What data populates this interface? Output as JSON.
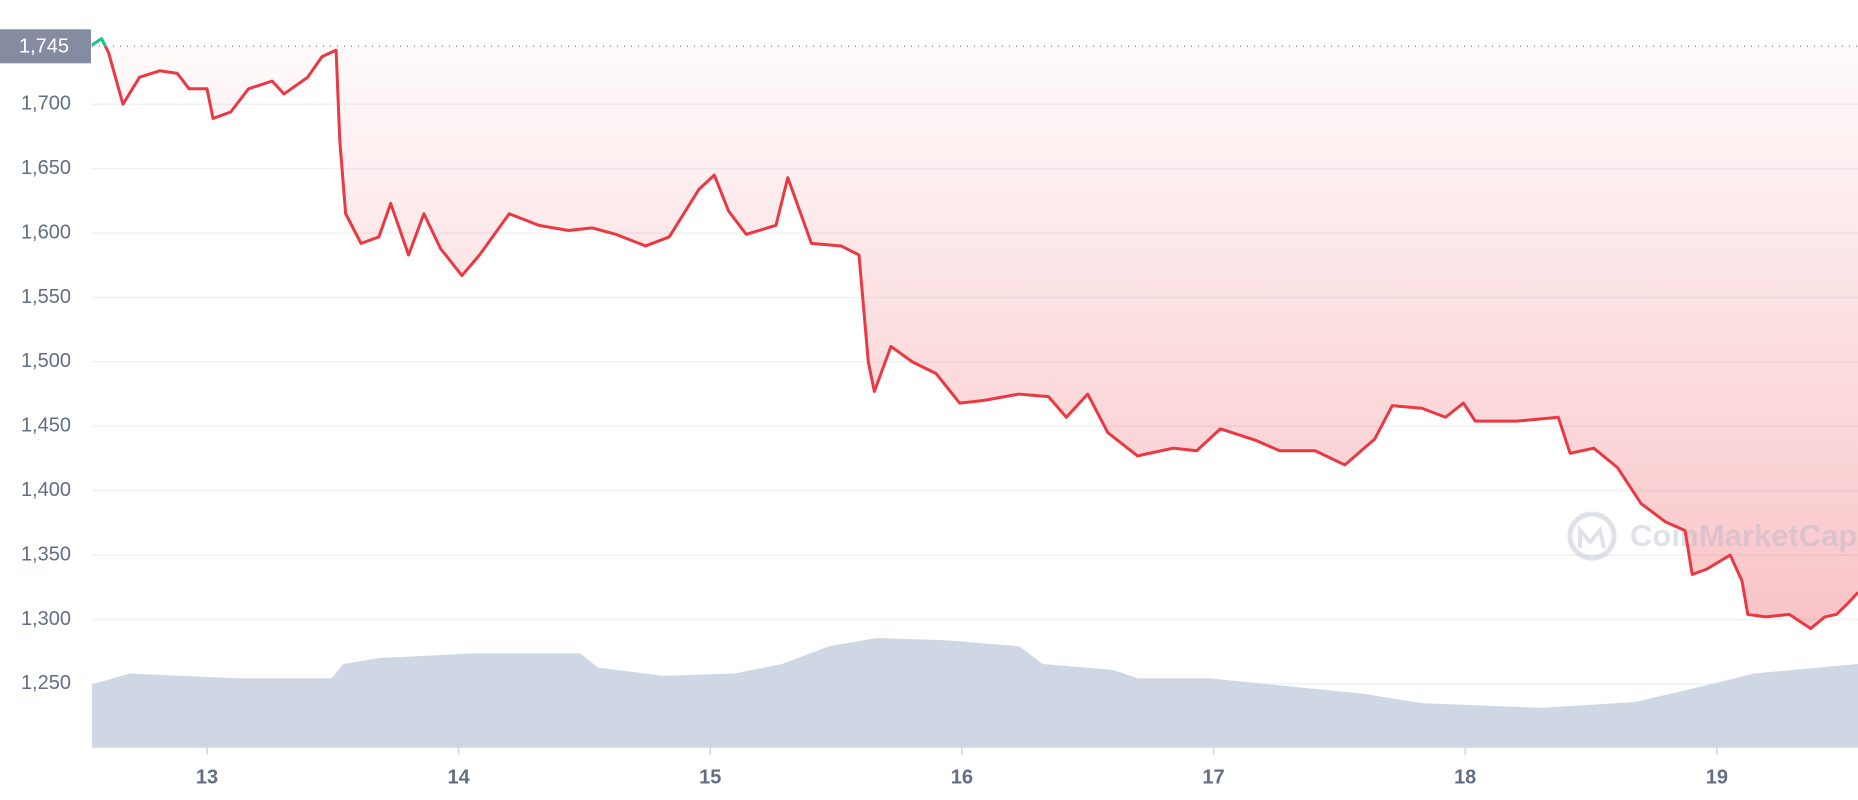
{
  "chart_data": {
    "type": "line",
    "x": [
      12.543,
      12.581,
      12.609,
      12.666,
      12.732,
      12.812,
      12.882,
      12.929,
      13.0,
      13.024,
      13.094,
      13.165,
      13.259,
      13.306,
      13.4,
      13.457,
      13.513,
      13.528,
      13.551,
      13.612,
      13.683,
      13.73,
      13.801,
      13.862,
      13.928,
      14.013,
      14.083,
      14.201,
      14.319,
      14.437,
      14.531,
      14.625,
      14.743,
      14.837,
      14.955,
      15.016,
      15.073,
      15.143,
      15.261,
      15.308,
      15.402,
      15.52,
      15.591,
      15.628,
      15.652,
      15.718,
      15.803,
      15.897,
      15.991,
      16.085,
      16.227,
      16.344,
      16.415,
      16.5,
      16.58,
      16.698,
      16.839,
      16.933,
      17.027,
      17.169,
      17.263,
      17.404,
      17.522,
      17.64,
      17.71,
      17.828,
      17.922,
      17.993,
      18.04,
      18.205,
      18.37,
      18.417,
      18.511,
      18.605,
      18.699,
      18.794,
      18.874,
      18.902,
      18.959,
      19.053,
      19.1,
      19.123,
      19.194,
      19.288,
      19.373,
      19.429,
      19.476,
      19.523,
      19.561
    ],
    "series": [
      {
        "name": "Price",
        "color": "#ea3943",
        "up_color": "#16c784",
        "values": [
          1746,
          1751,
          1740,
          1700,
          1721,
          1726,
          1724,
          1712,
          1712,
          1689,
          1694,
          1712,
          1718,
          1708,
          1721,
          1737,
          1742,
          1671,
          1615,
          1592,
          1597,
          1623,
          1583,
          1615,
          1588,
          1567,
          1583,
          1615,
          1606,
          1602,
          1604,
          1599,
          1590,
          1597,
          1634,
          1645,
          1617,
          1599,
          1606,
          1643,
          1592,
          1590,
          1583,
          1500,
          1477,
          1512,
          1500,
          1491,
          1468,
          1470,
          1475,
          1473,
          1457,
          1475,
          1445,
          1427,
          1433,
          1431,
          1448,
          1439,
          1431,
          1431,
          1420,
          1440,
          1466,
          1464,
          1457,
          1468,
          1454,
          1454,
          1457,
          1429,
          1433,
          1418,
          1390,
          1376,
          1369,
          1335,
          1339,
          1350,
          1330,
          1304,
          1302,
          1304,
          1293,
          1302,
          1304,
          1313,
          1321
        ]
      }
    ],
    "volume": {
      "color": "#cfd6e4",
      "x": [
        12.543,
        12.694,
        13.118,
        13.495,
        13.542,
        13.683,
        14.06,
        14.484,
        14.554,
        14.813,
        15.096,
        15.285,
        15.473,
        15.661,
        15.944,
        16.227,
        16.321,
        16.603,
        16.698,
        16.98,
        17.357,
        17.593,
        17.828,
        18.299,
        18.676,
        18.959,
        19.147,
        19.561
      ],
      "values": [
        53,
        62,
        58,
        58,
        70,
        75,
        79,
        79,
        67,
        60,
        62,
        70,
        85,
        92,
        90,
        85,
        70,
        65,
        58,
        58,
        50,
        45,
        37,
        33,
        38,
        52,
        62,
        70
      ],
      "ylim": [
        0,
        600
      ]
    },
    "reference": {
      "value": 1745,
      "label": "1,745"
    },
    "xlim": [
      12.543,
      19.561
    ],
    "xticks": [
      13,
      14,
      15,
      16,
      17,
      18,
      19
    ],
    "ylim": [
      1201,
      1753
    ],
    "yticks": [
      {
        "value": 1250,
        "label": "1,250"
      },
      {
        "value": 1300,
        "label": "1,300"
      },
      {
        "value": 1350,
        "label": "1,350"
      },
      {
        "value": 1400,
        "label": "1,400"
      },
      {
        "value": 1450,
        "label": "1,450"
      },
      {
        "value": 1500,
        "label": "1,500"
      },
      {
        "value": 1550,
        "label": "1,550"
      },
      {
        "value": 1600,
        "label": "1,600"
      },
      {
        "value": 1650,
        "label": "1,650"
      },
      {
        "value": 1700,
        "label": "1,700"
      }
    ],
    "grid": true,
    "watermark": "CoinMarketCap"
  }
}
